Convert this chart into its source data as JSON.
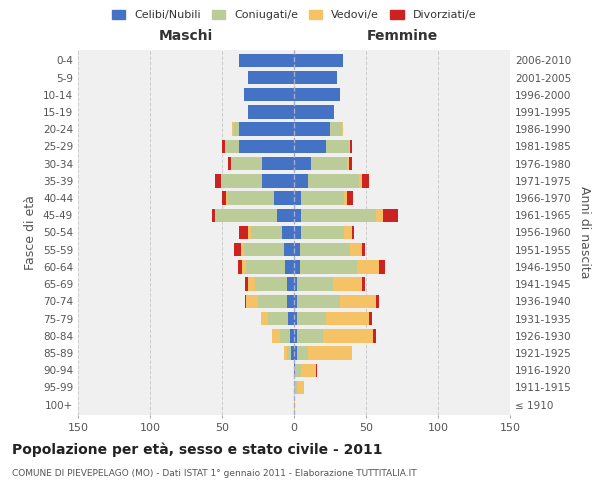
{
  "age_groups": [
    "100+",
    "95-99",
    "90-94",
    "85-89",
    "80-84",
    "75-79",
    "70-74",
    "65-69",
    "60-64",
    "55-59",
    "50-54",
    "45-49",
    "40-44",
    "35-39",
    "30-34",
    "25-29",
    "20-24",
    "15-19",
    "10-14",
    "5-9",
    "0-4"
  ],
  "birth_years": [
    "≤ 1910",
    "1911-1915",
    "1916-1920",
    "1921-1925",
    "1926-1930",
    "1931-1935",
    "1936-1940",
    "1941-1945",
    "1946-1950",
    "1951-1955",
    "1956-1960",
    "1961-1965",
    "1966-1970",
    "1971-1975",
    "1976-1980",
    "1981-1985",
    "1986-1990",
    "1991-1995",
    "1996-2000",
    "2001-2005",
    "2006-2010"
  ],
  "maschi": {
    "celibi": [
      0,
      0,
      0,
      2,
      3,
      4,
      5,
      5,
      6,
      7,
      8,
      12,
      14,
      22,
      22,
      38,
      38,
      32,
      35,
      32,
      38
    ],
    "coniugati": [
      0,
      0,
      0,
      3,
      7,
      14,
      20,
      22,
      27,
      28,
      22,
      42,
      32,
      28,
      22,
      10,
      4,
      0,
      0,
      0,
      0
    ],
    "vedovi": [
      0,
      0,
      0,
      2,
      5,
      5,
      8,
      5,
      3,
      2,
      2,
      1,
      1,
      1,
      0,
      0,
      1,
      0,
      0,
      0,
      0
    ],
    "divorziati": [
      0,
      0,
      0,
      0,
      0,
      0,
      1,
      2,
      3,
      5,
      6,
      2,
      3,
      4,
      2,
      2,
      0,
      0,
      0,
      0,
      0
    ]
  },
  "femmine": {
    "nubili": [
      0,
      0,
      1,
      2,
      2,
      2,
      2,
      2,
      4,
      4,
      5,
      5,
      5,
      10,
      12,
      22,
      25,
      28,
      32,
      30,
      34
    ],
    "coniugate": [
      0,
      2,
      4,
      8,
      18,
      20,
      30,
      25,
      40,
      35,
      30,
      52,
      30,
      35,
      25,
      16,
      8,
      0,
      0,
      0,
      0
    ],
    "vedove": [
      1,
      5,
      10,
      30,
      35,
      30,
      25,
      20,
      15,
      8,
      5,
      5,
      2,
      2,
      1,
      1,
      1,
      0,
      0,
      0,
      0
    ],
    "divorziate": [
      0,
      0,
      1,
      0,
      2,
      2,
      2,
      2,
      4,
      2,
      2,
      10,
      4,
      5,
      2,
      1,
      0,
      0,
      0,
      0,
      0
    ]
  },
  "colors": {
    "celibi": "#4472C4",
    "coniugati": "#BBCC99",
    "vedovi": "#F5C265",
    "divorziati": "#CC2222"
  },
  "xlim": 150,
  "title": "Popolazione per età, sesso e stato civile - 2011",
  "subtitle": "COMUNE DI PIEVEPELAGO (MO) - Dati ISTAT 1° gennaio 2011 - Elaborazione TUTTITALIA.IT",
  "ylabel_left": "Fasce di età",
  "ylabel_right": "Anni di nascita",
  "xlabel_maschi": "Maschi",
  "xlabel_femmine": "Femmine",
  "legend_labels": [
    "Celibi/Nubili",
    "Coniugati/e",
    "Vedovi/e",
    "Divorziati/e"
  ],
  "bg_color": "#f0f0f0",
  "grid_color": "#cccccc"
}
